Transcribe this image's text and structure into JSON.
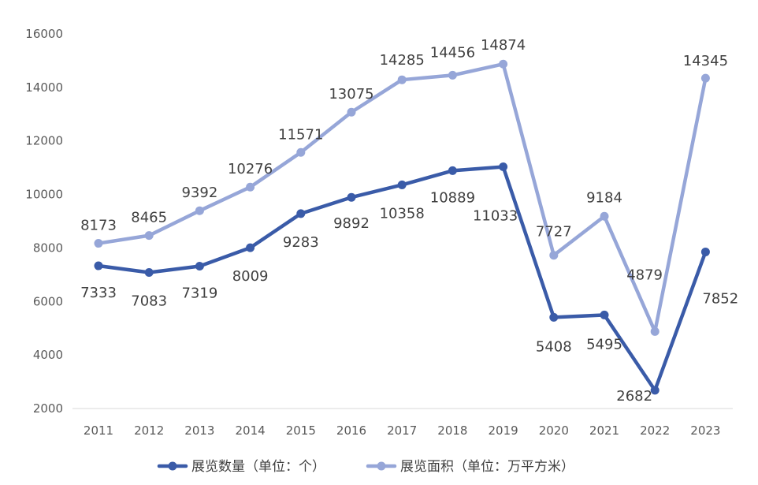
{
  "chart_data": {
    "type": "line",
    "title": "",
    "xlabel": "",
    "ylabel": "",
    "ylim": [
      2000,
      16000
    ],
    "yticks": [
      2000,
      4000,
      6000,
      8000,
      10000,
      12000,
      14000,
      16000
    ],
    "ytick_labels": [
      "2000",
      "4000",
      "6000",
      "8000",
      "10000",
      "12000",
      "14000",
      "16000"
    ],
    "categories": [
      "2011",
      "2012",
      "2013",
      "2014",
      "2015",
      "2016",
      "2017",
      "2018",
      "2019",
      "2020",
      "2021",
      "2022",
      "2023"
    ],
    "grid": false,
    "legend_position": "bottom",
    "series": [
      {
        "name": "展览数量（单位：个）",
        "color": "#3a5ba8",
        "values": [
          7333,
          7083,
          7319,
          8009,
          9283,
          9892,
          10358,
          10889,
          11033,
          5408,
          5495,
          2682,
          7852
        ],
        "labels": [
          "7333",
          "7083",
          "7319",
          "8009",
          "9283",
          "9892",
          "10358",
          "10889",
          "11033",
          "5408",
          "5495",
          "2682",
          "7852"
        ]
      },
      {
        "name": "展览面积（单位：万平方米）",
        "color": "#96a6d8",
        "values": [
          8173,
          8465,
          9392,
          10276,
          11571,
          13075,
          14285,
          14456,
          14874,
          7727,
          9184,
          4879,
          14345
        ],
        "labels": [
          "8173",
          "8465",
          "9392",
          "10276",
          "11571",
          "13075",
          "14285",
          "14456",
          "14874",
          "7727",
          "9184",
          "4879",
          "14345"
        ]
      }
    ]
  }
}
